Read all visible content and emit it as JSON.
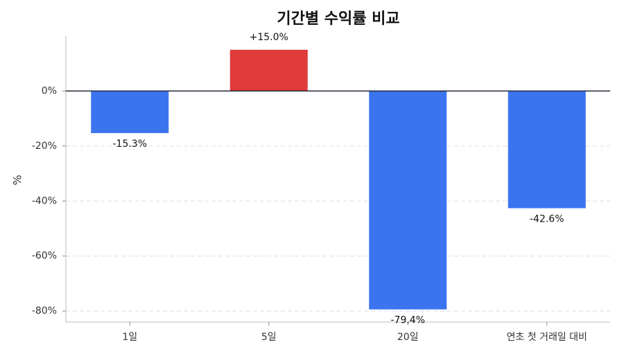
{
  "chart_data": {
    "type": "bar",
    "title": "기간별 수익률 비교",
    "ylabel": "%",
    "categories": [
      "1일",
      "5일",
      "20일",
      "연초 첫 거래일 대비"
    ],
    "values": [
      -15.3,
      15.0,
      -79.4,
      -42.6
    ],
    "value_labels": [
      "-15.3%",
      "+15.0%",
      "-79.4%",
      "-42.6%"
    ],
    "colors": [
      "#3b74ef",
      "#e03b3b",
      "#3b74ef",
      "#3b74ef"
    ],
    "ylim": [
      -84,
      20
    ],
    "yticks": [
      {
        "value": 0,
        "label": "0%"
      },
      {
        "value": -20,
        "label": "-20%"
      },
      {
        "value": -40,
        "label": "-40%"
      },
      {
        "value": -60,
        "label": "-60%"
      },
      {
        "value": -80,
        "label": "-80%"
      }
    ],
    "grid": true
  }
}
